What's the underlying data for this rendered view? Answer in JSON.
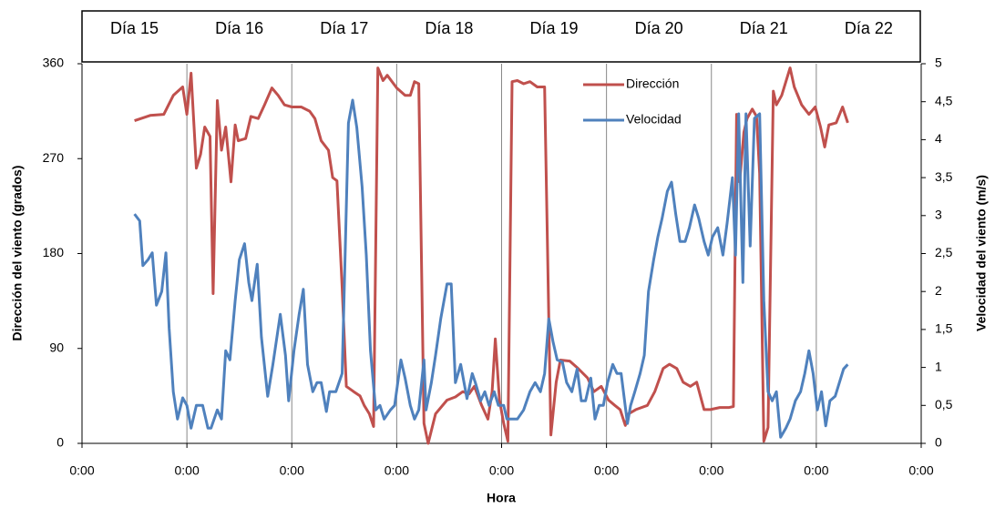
{
  "chart_data": {
    "type": "line",
    "day_labels": [
      "Día 15",
      "Día 16",
      "Día 17",
      "Día 18",
      "Día 19",
      "Día 20",
      "Día 21",
      "Día 22"
    ],
    "xlabel": "Hora",
    "ylabel": "Dirección del viento (grados)",
    "y2label": "Velocidad del viento (m/s)",
    "xlim": [
      0,
      8
    ],
    "xticks": [
      {
        "value": 0,
        "label": "0:00"
      },
      {
        "value": 1,
        "label": "0:00"
      },
      {
        "value": 2,
        "label": "0:00"
      },
      {
        "value": 3,
        "label": "0:00"
      },
      {
        "value": 4,
        "label": "0:00"
      },
      {
        "value": 5,
        "label": "0:00"
      },
      {
        "value": 6,
        "label": "0:00"
      },
      {
        "value": 7,
        "label": "0:00"
      },
      {
        "value": 8,
        "label": "0:00"
      }
    ],
    "ylim": [
      0,
      360
    ],
    "yticks": [
      0,
      90,
      180,
      270,
      360
    ],
    "y2lim": [
      0,
      5
    ],
    "y2ticks": [
      0,
      {
        "value": 0.5,
        "label": "0,5"
      },
      1,
      {
        "value": 1.5,
        "label": "1,5"
      },
      2,
      {
        "value": 2.5,
        "label": "2,5"
      },
      3,
      {
        "value": 3.5,
        "label": "3,5"
      },
      4,
      {
        "value": 4.5,
        "label": "4,5"
      },
      5
    ],
    "grid": "vertical",
    "legend": "upper right",
    "series": [
      {
        "name": "Dirección",
        "color": "#c0504d",
        "x": [
          0.5,
          0.65,
          0.78,
          0.87,
          0.96,
          1.0,
          1.04,
          1.09,
          1.13,
          1.17,
          1.22,
          1.25,
          1.29,
          1.33,
          1.37,
          1.42,
          1.46,
          1.49,
          1.56,
          1.61,
          1.68,
          1.74,
          1.81,
          1.87,
          1.93,
          2.0,
          2.09,
          2.17,
          2.22,
          2.28,
          2.35,
          2.39,
          2.43,
          2.48,
          2.52,
          2.59,
          2.65,
          2.69,
          2.74,
          2.78,
          2.82,
          2.87,
          2.91,
          3.0,
          3.08,
          3.13,
          3.17,
          3.21,
          3.26,
          3.3,
          3.37,
          3.48,
          3.56,
          3.63,
          3.69,
          3.74,
          3.81,
          3.87,
          3.91,
          3.94,
          3.98,
          4.02,
          4.06,
          4.1,
          4.15,
          4.21,
          4.27,
          4.34,
          4.41,
          4.47,
          4.52,
          4.56,
          4.65,
          4.73,
          4.82,
          4.88,
          4.95,
          5.02,
          5.08,
          5.13,
          5.18,
          5.21,
          5.28,
          5.39,
          5.46,
          5.54,
          5.6,
          5.67,
          5.73,
          5.8,
          5.86,
          5.93,
          5.99,
          6.08,
          6.17,
          6.21,
          6.24,
          6.27,
          6.31,
          6.34,
          6.39,
          6.43,
          6.46,
          6.5,
          6.54,
          6.59,
          6.62,
          6.67,
          6.71,
          6.75,
          6.79,
          6.86,
          6.93,
          6.99,
          7.04,
          7.08,
          7.12,
          7.19,
          7.25,
          7.3
        ],
        "values": [
          306,
          311,
          312,
          330,
          338,
          312,
          351,
          261,
          274,
          300,
          291,
          142,
          325,
          278,
          300,
          248,
          302,
          287,
          289,
          310,
          308,
          321,
          337,
          330,
          321,
          319,
          319,
          315,
          308,
          287,
          278,
          252,
          249,
          148,
          54,
          49,
          45,
          36,
          28,
          16,
          356,
          344,
          349,
          337,
          330,
          330,
          343,
          341,
          19,
          0,
          28,
          41,
          44,
          49,
          47,
          54,
          36,
          23,
          49,
          99,
          41,
          19,
          2,
          343,
          344,
          341,
          343,
          338,
          338,
          8,
          58,
          79,
          78,
          71,
          62,
          49,
          54,
          41,
          36,
          32,
          17,
          28,
          32,
          36,
          49,
          71,
          75,
          71,
          58,
          54,
          58,
          32,
          32,
          34,
          34,
          35,
          312,
          248,
          295,
          308,
          317,
          310,
          256,
          2,
          15,
          334,
          321,
          330,
          343,
          356,
          338,
          321,
          312,
          319,
          300,
          281,
          302,
          304,
          319,
          304
        ]
      },
      {
        "name": "Velocidad",
        "color": "#4f81bd",
        "axis": "y2",
        "x": [
          0.5,
          0.55,
          0.58,
          0.63,
          0.67,
          0.71,
          0.76,
          0.8,
          0.83,
          0.87,
          0.91,
          0.96,
          1.0,
          1.04,
          1.09,
          1.15,
          1.2,
          1.23,
          1.29,
          1.33,
          1.37,
          1.41,
          1.46,
          1.5,
          1.55,
          1.59,
          1.62,
          1.67,
          1.71,
          1.77,
          1.82,
          1.89,
          1.94,
          1.97,
          2.02,
          2.07,
          2.11,
          2.15,
          2.2,
          2.24,
          2.28,
          2.33,
          2.36,
          2.42,
          2.48,
          2.54,
          2.58,
          2.62,
          2.67,
          2.71,
          2.75,
          2.8,
          2.84,
          2.88,
          2.94,
          2.98,
          3.04,
          3.08,
          3.13,
          3.17,
          3.21,
          3.26,
          3.28,
          3.33,
          3.37,
          3.42,
          3.48,
          3.52,
          3.56,
          3.61,
          3.67,
          3.72,
          3.75,
          3.8,
          3.84,
          3.88,
          3.93,
          3.97,
          4.02,
          4.05,
          4.1,
          4.15,
          4.21,
          4.27,
          4.32,
          4.37,
          4.41,
          4.45,
          4.49,
          4.53,
          4.58,
          4.62,
          4.67,
          4.72,
          4.76,
          4.8,
          4.85,
          4.89,
          4.93,
          4.97,
          5.01,
          5.06,
          5.1,
          5.14,
          5.2,
          5.23,
          5.27,
          5.32,
          5.36,
          5.4,
          5.45,
          5.49,
          5.53,
          5.58,
          5.62,
          5.66,
          5.7,
          5.75,
          5.79,
          5.84,
          5.88,
          5.93,
          5.97,
          6.01,
          6.06,
          6.11,
          6.15,
          6.2,
          6.23,
          6.26,
          6.3,
          6.33,
          6.37,
          6.41,
          6.46,
          6.5,
          6.54,
          6.58,
          6.62,
          6.66,
          6.71,
          6.75,
          6.8,
          6.85,
          6.89,
          6.93,
          6.97,
          7.01,
          7.05,
          7.09,
          7.13,
          7.18,
          7.22,
          7.26,
          7.3
        ],
        "values": [
          3.02,
          2.93,
          2.34,
          2.42,
          2.51,
          1.82,
          2.0,
          2.51,
          1.52,
          0.68,
          0.32,
          0.6,
          0.5,
          0.2,
          0.5,
          0.5,
          0.2,
          0.2,
          0.44,
          0.32,
          1.22,
          1.1,
          1.88,
          2.42,
          2.63,
          2.12,
          1.88,
          2.36,
          1.4,
          0.62,
          1.04,
          1.7,
          1.16,
          0.56,
          1.22,
          1.7,
          2.03,
          1.04,
          0.68,
          0.8,
          0.8,
          0.42,
          0.68,
          0.68,
          0.92,
          4.22,
          4.52,
          4.16,
          3.38,
          2.48,
          1.22,
          0.44,
          0.5,
          0.32,
          0.44,
          0.5,
          1.1,
          0.86,
          0.5,
          0.32,
          0.44,
          1.1,
          0.44,
          0.8,
          1.16,
          1.64,
          2.1,
          2.1,
          0.8,
          1.04,
          0.59,
          0.92,
          0.8,
          0.56,
          0.68,
          0.5,
          0.68,
          0.5,
          0.5,
          0.32,
          0.32,
          0.32,
          0.44,
          0.68,
          0.8,
          0.68,
          0.92,
          1.64,
          1.34,
          1.1,
          1.07,
          0.8,
          0.68,
          0.98,
          0.56,
          0.56,
          0.86,
          0.32,
          0.5,
          0.5,
          0.8,
          1.04,
          0.92,
          0.92,
          0.26,
          0.5,
          0.68,
          0.92,
          1.16,
          2.0,
          2.42,
          2.72,
          2.96,
          3.32,
          3.44,
          3.02,
          2.66,
          2.66,
          2.84,
          3.14,
          2.96,
          2.66,
          2.48,
          2.72,
          2.84,
          2.48,
          2.9,
          3.5,
          2.48,
          4.34,
          2.12,
          4.34,
          2.6,
          4.28,
          4.34,
          1.88,
          0.68,
          0.56,
          0.68,
          0.08,
          0.2,
          0.32,
          0.56,
          0.68,
          0.92,
          1.22,
          0.92,
          0.44,
          0.68,
          0.23,
          0.56,
          0.62,
          0.8,
          0.98,
          1.04
        ]
      }
    ]
  }
}
